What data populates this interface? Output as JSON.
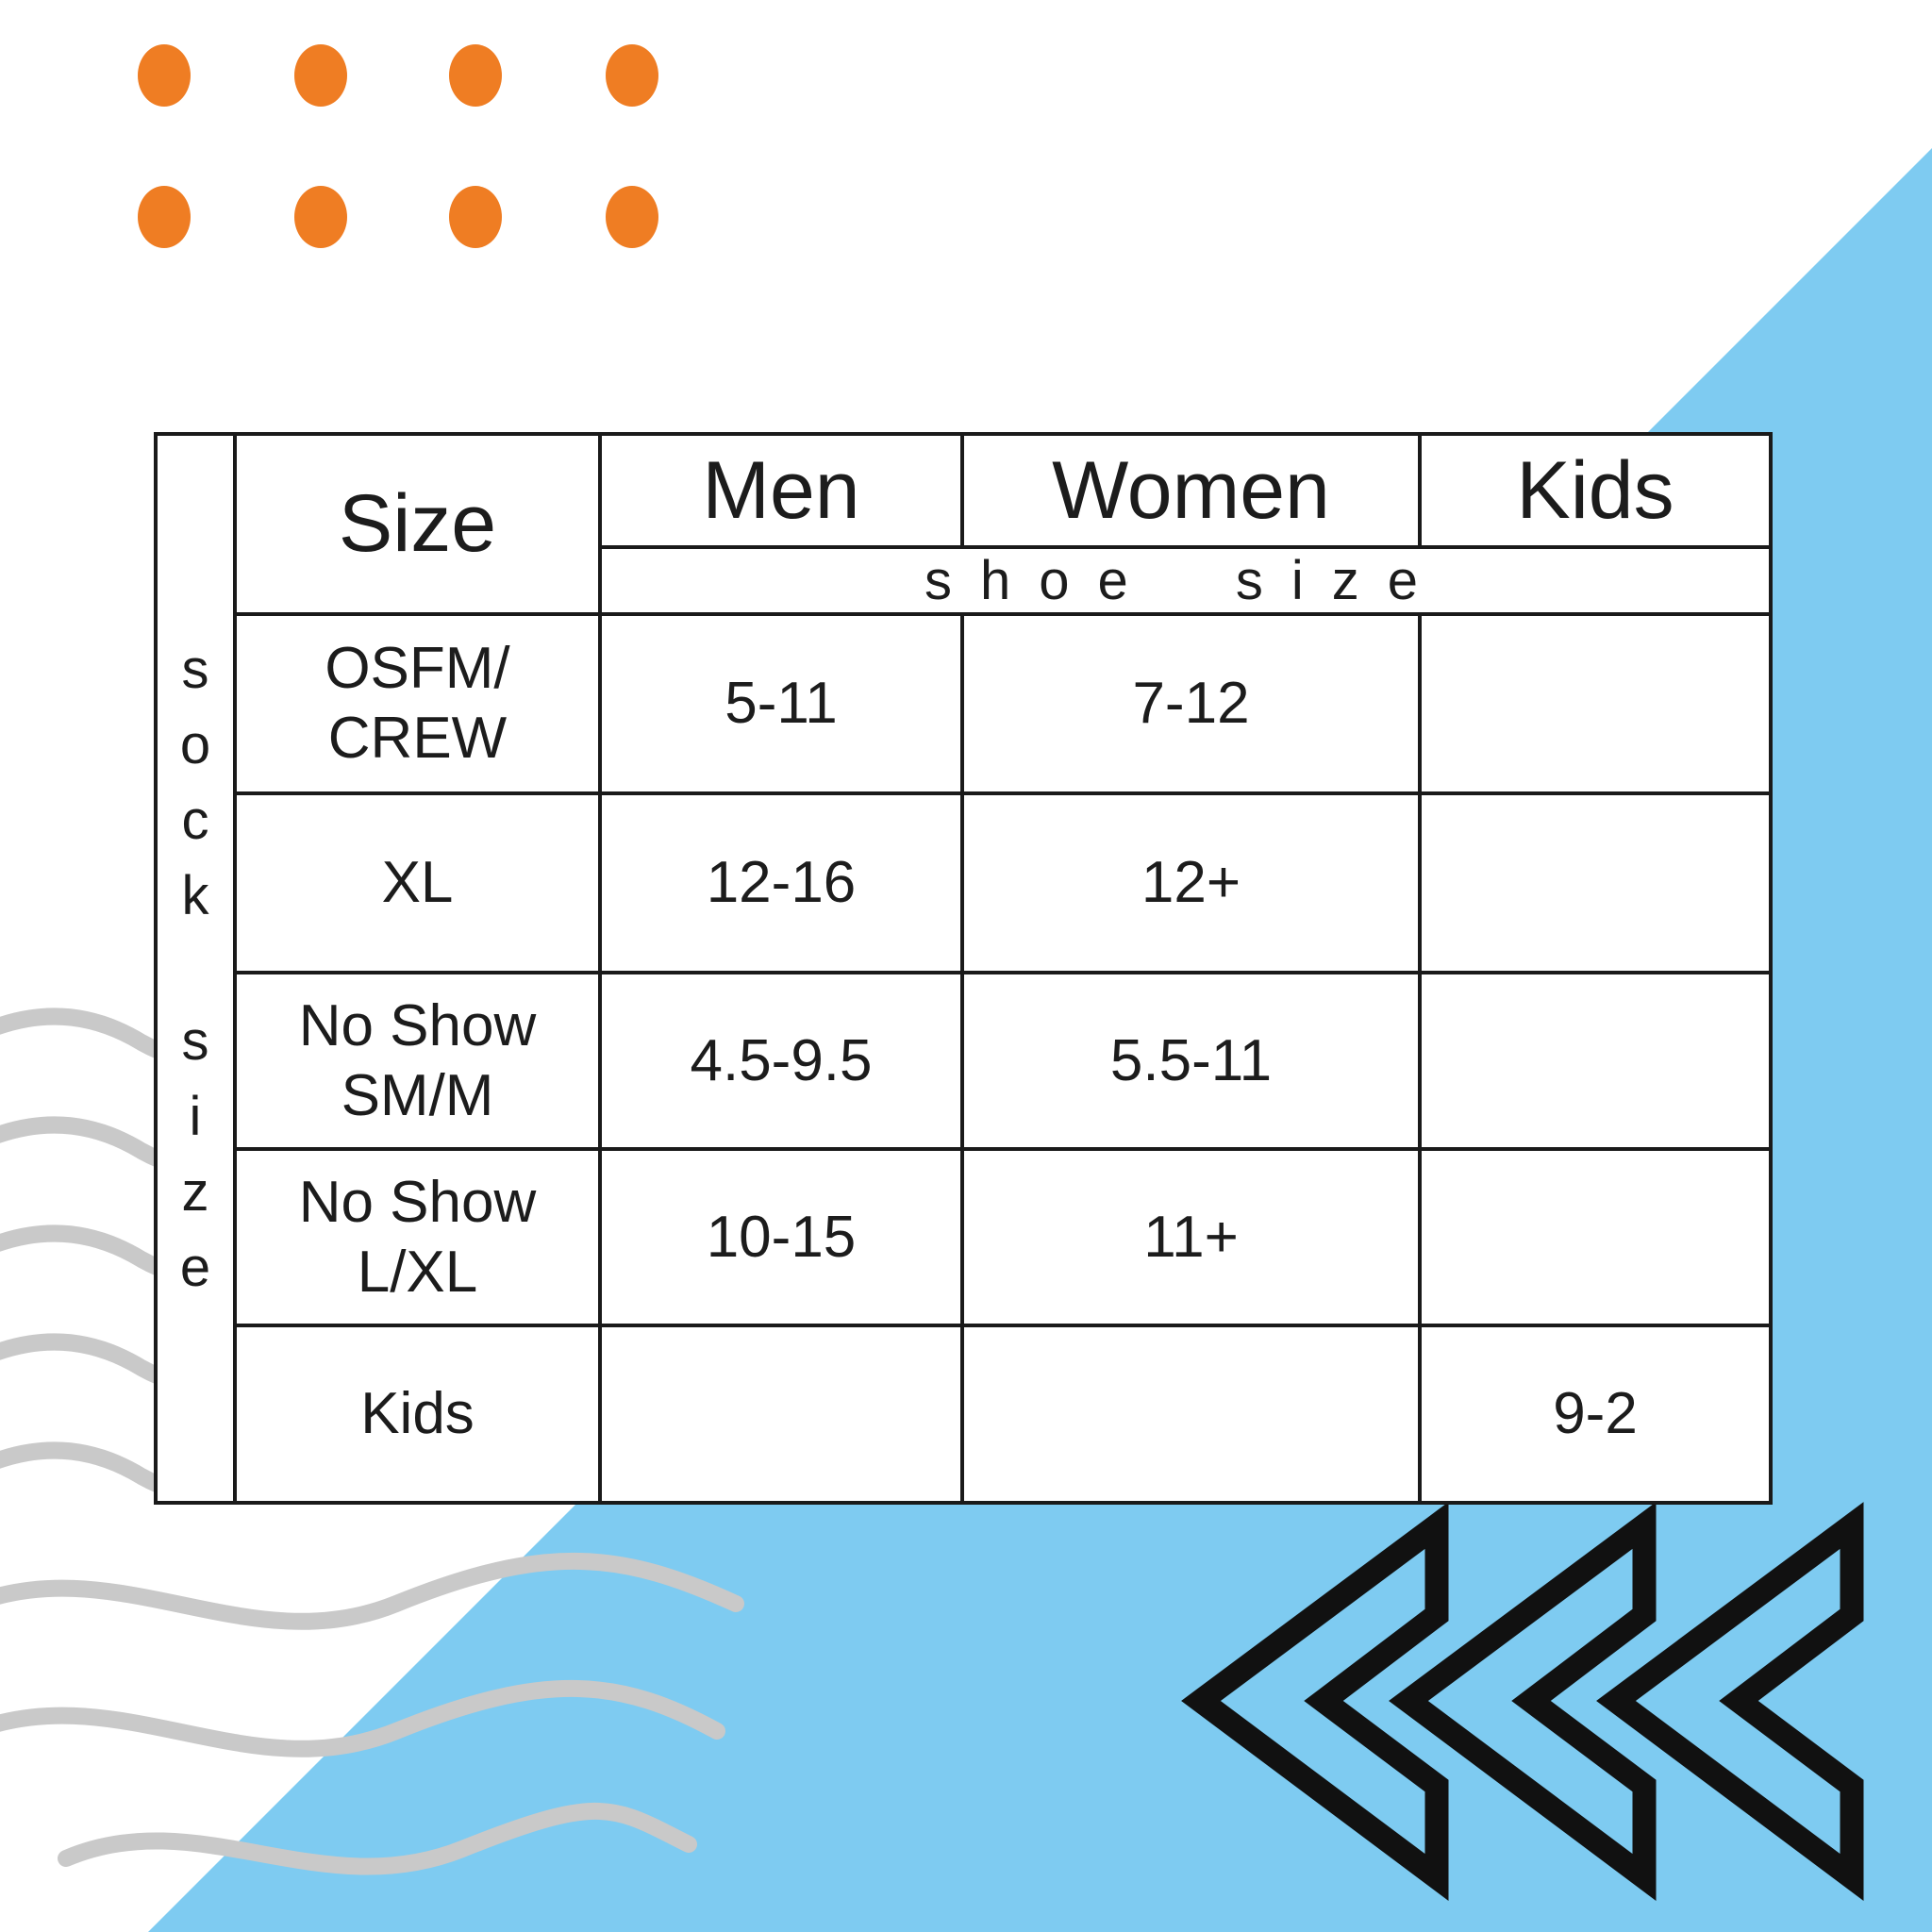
{
  "colors": {
    "blue": "#7ecbf1",
    "orange": "#ef7d23",
    "gray": "#c9c9c9",
    "line": "#1a1a1a",
    "chevron": "#111111"
  },
  "table": {
    "side_label": "sock size",
    "span_label": "shoe size",
    "col_headers": {
      "size": "Size",
      "men": "Men",
      "women": "Women",
      "kids": "Kids"
    },
    "rows": [
      {
        "label_lines": [
          "OSFM/",
          "CREW"
        ],
        "men": "5-11",
        "women": "7-12",
        "kids": ""
      },
      {
        "label_lines": [
          "XL"
        ],
        "men": "12-16",
        "women": "12+",
        "kids": ""
      },
      {
        "label_lines": [
          "No Show",
          "SM/M"
        ],
        "men": "4.5-9.5",
        "women": "5.5-11",
        "kids": ""
      },
      {
        "label_lines": [
          "No Show",
          "L/XL"
        ],
        "men": "10-15",
        "women": "11+",
        "kids": ""
      },
      {
        "label_lines": [
          "Kids"
        ],
        "men": "",
        "women": "",
        "kids": "9-2"
      }
    ]
  }
}
